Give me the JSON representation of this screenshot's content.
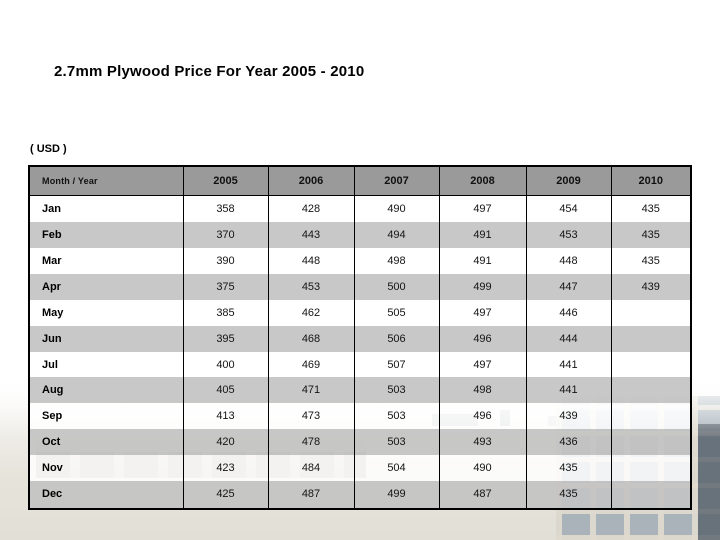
{
  "slide": {
    "title": "2.7mm Plywood Price For Year 2005 - 2010",
    "currency_label": "( USD )"
  },
  "colors": {
    "header_bg": "#9a9a9a",
    "stripe_gray": "#c4c4c4",
    "border": "#000000",
    "background": "#ffffff"
  },
  "table": {
    "header": [
      "Month / Year",
      "2005",
      "2006",
      "2007",
      "2008",
      "2009",
      "2010"
    ],
    "rows": [
      {
        "month": "Jan",
        "values": [
          "358",
          "428",
          "490",
          "497",
          "454",
          "435"
        ]
      },
      {
        "month": "Feb",
        "values": [
          "370",
          "443",
          "494",
          "491",
          "453",
          "435"
        ]
      },
      {
        "month": "Mar",
        "values": [
          "390",
          "448",
          "498",
          "491",
          "448",
          "435"
        ]
      },
      {
        "month": "Apr",
        "values": [
          "375",
          "453",
          "500",
          "499",
          "447",
          "439"
        ]
      },
      {
        "month": "May",
        "values": [
          "385",
          "462",
          "505",
          "497",
          "446",
          ""
        ]
      },
      {
        "month": "Jun",
        "values": [
          "395",
          "468",
          "506",
          "496",
          "444",
          ""
        ]
      },
      {
        "month": "Jul",
        "values": [
          "400",
          "469",
          "507",
          "497",
          "441",
          ""
        ]
      },
      {
        "month": "Aug",
        "values": [
          "405",
          "471",
          "503",
          "498",
          "441",
          ""
        ]
      },
      {
        "month": "Sep",
        "values": [
          "413",
          "473",
          "503",
          "496",
          "439",
          ""
        ]
      },
      {
        "month": "Oct",
        "values": [
          "420",
          "478",
          "503",
          "493",
          "436",
          ""
        ]
      },
      {
        "month": "Nov",
        "values": [
          "423",
          "484",
          "504",
          "490",
          "435",
          ""
        ]
      },
      {
        "month": "Dec",
        "values": [
          "425",
          "487",
          "499",
          "487",
          "435",
          ""
        ]
      }
    ]
  }
}
